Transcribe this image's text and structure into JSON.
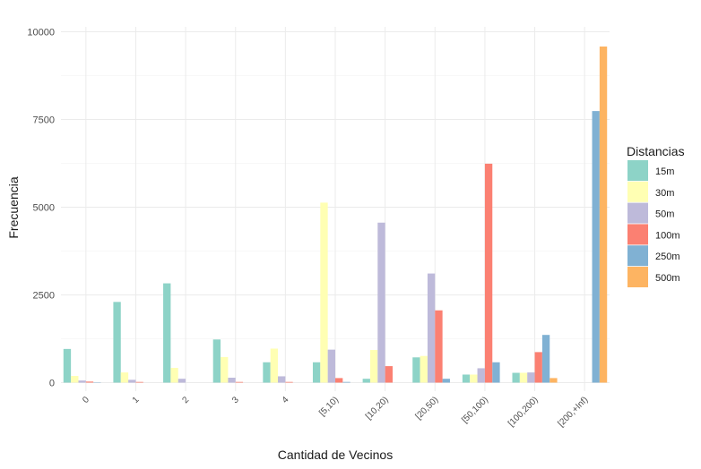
{
  "chart_data": {
    "type": "bar",
    "xlabel": "Cantidad de Vecinos",
    "ylabel": "Frecuencia",
    "categories": [
      "0",
      "1",
      "2",
      "3",
      "4",
      "[5,10)",
      "[10,20)",
      "[20,50)",
      "[50,100)",
      "[100,200)",
      "[200,+Inf)"
    ],
    "ylim": [
      0,
      10000
    ],
    "yticks": [
      0,
      2500,
      5000,
      7500,
      10000
    ],
    "grid": true,
    "legend": {
      "title": "Distancias",
      "position": "right"
    },
    "series": [
      {
        "name": "15m",
        "color": "#8DD3C7",
        "values": [
          960,
          2300,
          2830,
          1230,
          580,
          580,
          110,
          720,
          230,
          280,
          0
        ]
      },
      {
        "name": "30m",
        "color": "#FFFFB3",
        "values": [
          190,
          290,
          420,
          730,
          970,
          5130,
          930,
          760,
          230,
          280,
          0
        ]
      },
      {
        "name": "50m",
        "color": "#BEBADA",
        "values": [
          60,
          80,
          110,
          140,
          180,
          940,
          4560,
          3110,
          410,
          290,
          0
        ]
      },
      {
        "name": "100m",
        "color": "#FB8072",
        "values": [
          30,
          20,
          0,
          20,
          20,
          130,
          470,
          2060,
          6240,
          870,
          0
        ]
      },
      {
        "name": "250m",
        "color": "#80B1D3",
        "values": [
          10,
          0,
          0,
          0,
          0,
          20,
          0,
          110,
          580,
          1360,
          7740
        ]
      },
      {
        "name": "500m",
        "color": "#FDB462",
        "values": [
          0,
          0,
          0,
          0,
          0,
          0,
          0,
          0,
          0,
          130,
          9580
        ]
      }
    ]
  }
}
